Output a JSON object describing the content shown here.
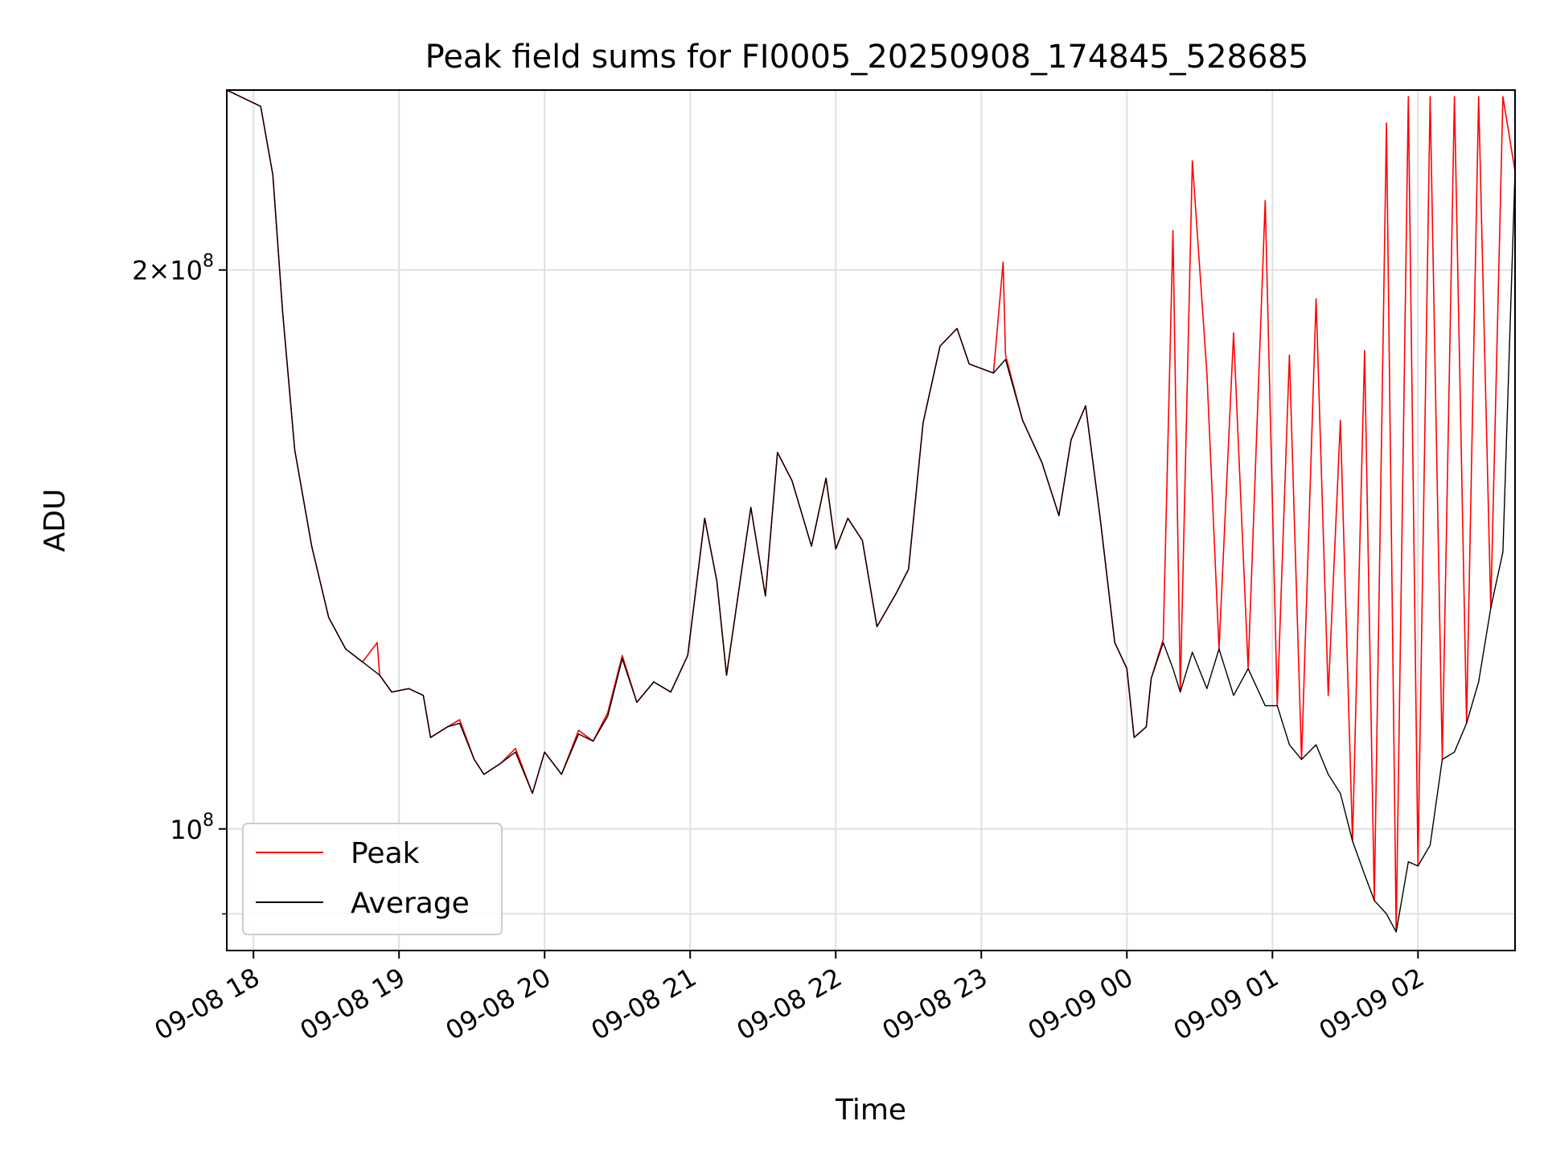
{
  "chart_data": {
    "type": "line",
    "title": "Peak field sums for FI0005_20250908_174845_528685",
    "xlabel": "Time",
    "ylabel": "ADU",
    "yscale": "log",
    "ylim": [
      86000000,
      250000000
    ],
    "xlim": [
      "2025-09-08 17:49",
      "2025-09-09 02:40"
    ],
    "grid": true,
    "legend_position": "lower-left",
    "x_ticks": [
      "09-08 18",
      "09-08 19",
      "09-08 20",
      "09-08 21",
      "09-08 22",
      "09-08 23",
      "09-09 00",
      "09-09 01",
      "09-09 02"
    ],
    "x_tick_values": [
      "2025-09-08 18:00",
      "2025-09-08 19:00",
      "2025-09-08 20:00",
      "2025-09-08 21:00",
      "2025-09-08 22:00",
      "2025-09-08 23:00",
      "2025-09-09 00:00",
      "2025-09-09 01:00",
      "2025-09-09 02:00"
    ],
    "y_ticks": [
      {
        "value": 200000000,
        "base": "2×10",
        "exp": "8"
      },
      {
        "value": 100000000,
        "base": "10",
        "exp": "8"
      }
    ],
    "y_minor_ticks": [
      90000000
    ],
    "colors": {
      "peak": "#ff0000",
      "average": "#000000"
    },
    "series": [
      {
        "name": "Peak",
        "color": "#ff0000",
        "points": [
          [
            "2025-09-08 17:49",
            250000000
          ],
          [
            "2025-09-08 18:03",
            245000000
          ],
          [
            "2025-09-08 18:08",
            225000000
          ],
          [
            "2025-09-08 18:12",
            190000000
          ],
          [
            "2025-09-08 18:17",
            160000000
          ],
          [
            "2025-09-08 18:24",
            142000000
          ],
          [
            "2025-09-08 18:31",
            130000000
          ],
          [
            "2025-09-08 18:38",
            125000000
          ],
          [
            "2025-09-08 18:45",
            123000000
          ],
          [
            "2025-09-08 18:51",
            126000000
          ],
          [
            "2025-09-08 18:52",
            121000000
          ],
          [
            "2025-09-08 18:57",
            118500000
          ],
          [
            "2025-09-08 19:04",
            119000000
          ],
          [
            "2025-09-08 19:10",
            118000000
          ],
          [
            "2025-09-08 19:13",
            112000000
          ],
          [
            "2025-09-08 19:20",
            113500000
          ],
          [
            "2025-09-08 19:25",
            114500000
          ],
          [
            "2025-09-08 19:31",
            109000000
          ],
          [
            "2025-09-08 19:35",
            107000000
          ],
          [
            "2025-09-08 19:42",
            108500000
          ],
          [
            "2025-09-08 19:48",
            110500000
          ],
          [
            "2025-09-08 19:55",
            104500000
          ],
          [
            "2025-09-08 20:00",
            110000000
          ],
          [
            "2025-09-08 20:07",
            107000000
          ],
          [
            "2025-09-08 20:14",
            113000000
          ],
          [
            "2025-09-08 20:20",
            111500000
          ],
          [
            "2025-09-08 20:26",
            115500000
          ],
          [
            "2025-09-08 20:32",
            124000000
          ],
          [
            "2025-09-08 20:38",
            117000000
          ],
          [
            "2025-09-08 20:45",
            120000000
          ],
          [
            "2025-09-08 20:52",
            118500000
          ],
          [
            "2025-09-08 20:59",
            124000000
          ],
          [
            "2025-09-08 21:06",
            147000000
          ],
          [
            "2025-09-08 21:11",
            136000000
          ],
          [
            "2025-09-08 21:15",
            121000000
          ],
          [
            "2025-09-08 21:22",
            140000000
          ],
          [
            "2025-09-08 21:25",
            149000000
          ],
          [
            "2025-09-08 21:31",
            133500000
          ],
          [
            "2025-09-08 21:36",
            159500000
          ],
          [
            "2025-09-08 21:42",
            154000000
          ],
          [
            "2025-09-08 21:50",
            142000000
          ],
          [
            "2025-09-08 21:56",
            154500000
          ],
          [
            "2025-09-08 22:00",
            141500000
          ],
          [
            "2025-09-08 22:05",
            147000000
          ],
          [
            "2025-09-08 22:11",
            143000000
          ],
          [
            "2025-09-08 22:17",
            128500000
          ],
          [
            "2025-09-08 22:25",
            134000000
          ],
          [
            "2025-09-08 22:30",
            138000000
          ],
          [
            "2025-09-08 22:36",
            165500000
          ],
          [
            "2025-09-08 22:43",
            182000000
          ],
          [
            "2025-09-08 22:50",
            186000000
          ],
          [
            "2025-09-08 22:55",
            178000000
          ],
          [
            "2025-09-08 23:05",
            176000000
          ],
          [
            "2025-09-08 23:09",
            202000000
          ],
          [
            "2025-09-08 23:10",
            180000000
          ],
          [
            "2025-09-08 23:17",
            166000000
          ],
          [
            "2025-09-08 23:25",
            157500000
          ],
          [
            "2025-09-08 23:32",
            147500000
          ],
          [
            "2025-09-08 23:37",
            162000000
          ],
          [
            "2025-09-08 23:43",
            169000000
          ],
          [
            "2025-09-08 23:49",
            147000000
          ],
          [
            "2025-09-08 23:55",
            126000000
          ],
          [
            "2025-09-09 00:00",
            122000000
          ],
          [
            "2025-09-09 00:03",
            112000000
          ],
          [
            "2025-09-09 00:08",
            113500000
          ],
          [
            "2025-09-09 00:10",
            120500000
          ],
          [
            "2025-09-09 00:15",
            126500000
          ],
          [
            "2025-09-09 00:19",
            210000000
          ],
          [
            "2025-09-09 00:22",
            118500000
          ],
          [
            "2025-09-09 00:27",
            229000000
          ],
          [
            "2025-09-09 00:33",
            176000000
          ],
          [
            "2025-09-09 00:38",
            125000000
          ],
          [
            "2025-09-09 00:44",
            185000000
          ],
          [
            "2025-09-09 00:50",
            122000000
          ],
          [
            "2025-09-09 00:57",
            218000000
          ],
          [
            "2025-09-09 01:02",
            116500000
          ],
          [
            "2025-09-09 01:07",
            180000000
          ],
          [
            "2025-09-09 01:12",
            109000000
          ],
          [
            "2025-09-09 01:18",
            193000000
          ],
          [
            "2025-09-09 01:23",
            118000000
          ],
          [
            "2025-09-09 01:28",
            166000000
          ],
          [
            "2025-09-09 01:33",
            98500000
          ],
          [
            "2025-09-09 01:38",
            181000000
          ],
          [
            "2025-09-09 01:42",
            91500000
          ],
          [
            "2025-09-09 01:47",
            240000000
          ],
          [
            "2025-09-09 01:51",
            88000000
          ],
          [
            "2025-09-09 01:56",
            248000000
          ],
          [
            "2025-09-09 02:00",
            95500000
          ],
          [
            "2025-09-09 02:05",
            248000000
          ],
          [
            "2025-09-09 02:10",
            109000000
          ],
          [
            "2025-09-09 02:15",
            248000000
          ],
          [
            "2025-09-09 02:20",
            114000000
          ],
          [
            "2025-09-09 02:25",
            248000000
          ],
          [
            "2025-09-09 02:30",
            131500000
          ],
          [
            "2025-09-09 02:35",
            248000000
          ],
          [
            "2025-09-09 02:40",
            226000000
          ]
        ]
      },
      {
        "name": "Average",
        "color": "#000000",
        "points": [
          [
            "2025-09-08 17:49",
            250000000
          ],
          [
            "2025-09-08 18:03",
            245000000
          ],
          [
            "2025-09-08 18:08",
            225000000
          ],
          [
            "2025-09-08 18:12",
            190000000
          ],
          [
            "2025-09-08 18:17",
            160000000
          ],
          [
            "2025-09-08 18:24",
            142000000
          ],
          [
            "2025-09-08 18:31",
            130000000
          ],
          [
            "2025-09-08 18:38",
            125000000
          ],
          [
            "2025-09-08 18:45",
            123000000
          ],
          [
            "2025-09-08 18:52",
            121000000
          ],
          [
            "2025-09-08 18:57",
            118500000
          ],
          [
            "2025-09-08 19:04",
            119000000
          ],
          [
            "2025-09-08 19:10",
            118000000
          ],
          [
            "2025-09-08 19:13",
            112000000
          ],
          [
            "2025-09-08 19:20",
            113500000
          ],
          [
            "2025-09-08 19:25",
            114000000
          ],
          [
            "2025-09-08 19:31",
            109000000
          ],
          [
            "2025-09-08 19:35",
            107000000
          ],
          [
            "2025-09-08 19:42",
            108500000
          ],
          [
            "2025-09-08 19:48",
            110000000
          ],
          [
            "2025-09-08 19:55",
            104500000
          ],
          [
            "2025-09-08 20:00",
            110000000
          ],
          [
            "2025-09-08 20:07",
            107000000
          ],
          [
            "2025-09-08 20:14",
            112500000
          ],
          [
            "2025-09-08 20:20",
            111500000
          ],
          [
            "2025-09-08 20:26",
            115000000
          ],
          [
            "2025-09-08 20:32",
            123500000
          ],
          [
            "2025-09-08 20:38",
            117000000
          ],
          [
            "2025-09-08 20:45",
            120000000
          ],
          [
            "2025-09-08 20:52",
            118500000
          ],
          [
            "2025-09-08 20:59",
            124000000
          ],
          [
            "2025-09-08 21:06",
            147000000
          ],
          [
            "2025-09-08 21:11",
            136000000
          ],
          [
            "2025-09-08 21:15",
            121000000
          ],
          [
            "2025-09-08 21:22",
            140000000
          ],
          [
            "2025-09-08 21:25",
            149000000
          ],
          [
            "2025-09-08 21:31",
            133500000
          ],
          [
            "2025-09-08 21:36",
            159500000
          ],
          [
            "2025-09-08 21:42",
            154000000
          ],
          [
            "2025-09-08 21:50",
            142000000
          ],
          [
            "2025-09-08 21:56",
            154500000
          ],
          [
            "2025-09-08 22:00",
            141500000
          ],
          [
            "2025-09-08 22:05",
            147000000
          ],
          [
            "2025-09-08 22:11",
            143000000
          ],
          [
            "2025-09-08 22:17",
            128500000
          ],
          [
            "2025-09-08 22:25",
            134000000
          ],
          [
            "2025-09-08 22:30",
            138000000
          ],
          [
            "2025-09-08 22:36",
            165500000
          ],
          [
            "2025-09-08 22:43",
            182000000
          ],
          [
            "2025-09-08 22:50",
            186000000
          ],
          [
            "2025-09-08 22:55",
            178000000
          ],
          [
            "2025-09-08 23:05",
            176000000
          ],
          [
            "2025-09-08 23:10",
            179000000
          ],
          [
            "2025-09-08 23:17",
            166000000
          ],
          [
            "2025-09-08 23:25",
            157500000
          ],
          [
            "2025-09-08 23:32",
            147500000
          ],
          [
            "2025-09-08 23:37",
            162000000
          ],
          [
            "2025-09-08 23:43",
            169000000
          ],
          [
            "2025-09-08 23:49",
            147000000
          ],
          [
            "2025-09-08 23:55",
            126000000
          ],
          [
            "2025-09-09 00:00",
            122000000
          ],
          [
            "2025-09-09 00:03",
            112000000
          ],
          [
            "2025-09-09 00:08",
            113500000
          ],
          [
            "2025-09-09 00:10",
            120500000
          ],
          [
            "2025-09-09 00:15",
            126000000
          ],
          [
            "2025-09-09 00:19",
            122000000
          ],
          [
            "2025-09-09 00:22",
            118500000
          ],
          [
            "2025-09-09 00:27",
            124500000
          ],
          [
            "2025-09-09 00:33",
            119000000
          ],
          [
            "2025-09-09 00:38",
            125000000
          ],
          [
            "2025-09-09 00:44",
            118000000
          ],
          [
            "2025-09-09 00:50",
            122000000
          ],
          [
            "2025-09-09 00:57",
            116500000
          ],
          [
            "2025-09-09 01:02",
            116500000
          ],
          [
            "2025-09-09 01:07",
            111000000
          ],
          [
            "2025-09-09 01:12",
            109000000
          ],
          [
            "2025-09-09 01:18",
            111000000
          ],
          [
            "2025-09-09 01:23",
            107000000
          ],
          [
            "2025-09-09 01:28",
            104500000
          ],
          [
            "2025-09-09 01:33",
            98500000
          ],
          [
            "2025-09-09 01:38",
            94500000
          ],
          [
            "2025-09-09 01:42",
            91500000
          ],
          [
            "2025-09-09 01:47",
            90000000
          ],
          [
            "2025-09-09 01:51",
            88000000
          ],
          [
            "2025-09-09 01:56",
            96000000
          ],
          [
            "2025-09-09 02:00",
            95500000
          ],
          [
            "2025-09-09 02:05",
            98000000
          ],
          [
            "2025-09-09 02:10",
            109000000
          ],
          [
            "2025-09-09 02:15",
            110000000
          ],
          [
            "2025-09-09 02:20",
            114000000
          ],
          [
            "2025-09-09 02:25",
            120000000
          ],
          [
            "2025-09-09 02:30",
            131500000
          ],
          [
            "2025-09-09 02:35",
            141000000
          ],
          [
            "2025-09-09 02:40",
            226000000
          ]
        ]
      }
    ]
  }
}
